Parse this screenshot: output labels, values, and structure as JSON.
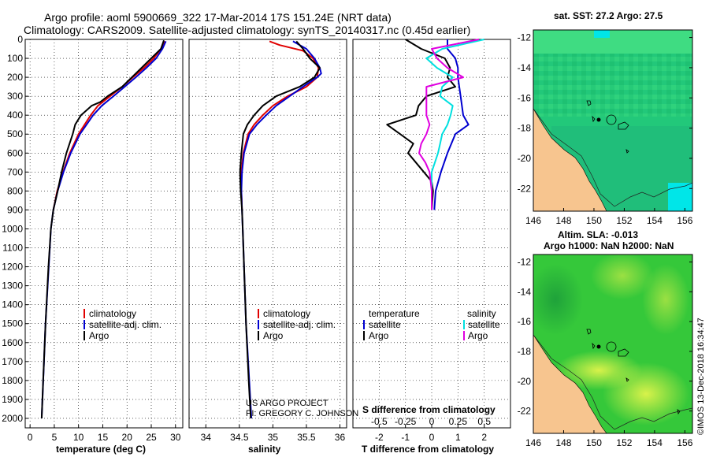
{
  "figure": {
    "title_line1": "Argo profile: aoml 5900669_322 17-Mar-2014 17S 151.24E (NRT data)",
    "title_line2": "Climatology: CARS2009. Satellite-adjusted climatology: synTS_20140317.nc (0.45d earlier)",
    "credit_line1": "US ARGO PROJECT",
    "credit_line2": "PI: GREGORY C. JOHNSON",
    "imos_stamp": "©IMOS 13-Dec-2018 16:34:47",
    "colors": {
      "climatology": "#e00000",
      "satellite": "#0000d0",
      "argo": "#000000",
      "sat_salinity": "#00e0e0",
      "argo_salinity": "#e000e0"
    }
  },
  "chart_data": [
    {
      "type": "line",
      "name": "temperature",
      "xlabel": "temperature (deg C)",
      "ylabel": "",
      "xlim": [
        -1,
        31.5
      ],
      "ylim": [
        2050,
        0
      ],
      "xticks": [
        "0",
        "5",
        "10",
        "15",
        "20",
        "25",
        "30"
      ],
      "xtick_values": [
        0,
        5,
        10,
        15,
        20,
        25,
        30
      ],
      "yticks": [
        "0",
        "100",
        "200",
        "300",
        "400",
        "500",
        "600",
        "700",
        "800",
        "900",
        "1000",
        "1100",
        "1200",
        "1300",
        "1400",
        "1500",
        "1600",
        "1700",
        "1800",
        "1900",
        "2000"
      ],
      "ytick_values": [
        0,
        100,
        200,
        300,
        400,
        500,
        600,
        700,
        800,
        900,
        1000,
        1100,
        1200,
        1300,
        1400,
        1500,
        1600,
        1700,
        1800,
        1900,
        2000
      ],
      "legend": [
        "climatology",
        "satellite-adj. clim.",
        "Argo"
      ],
      "series": [
        {
          "name": "climatology",
          "color": "#e00000",
          "depth": [
            10,
            50,
            100,
            150,
            200,
            250,
            300,
            350,
            400,
            500,
            600,
            700,
            800,
            900
          ],
          "values": [
            27.8,
            27.0,
            25.5,
            23.5,
            21.2,
            19.0,
            16.5,
            14.0,
            12.5,
            10.0,
            8.2,
            6.8,
            5.6,
            4.8
          ]
        },
        {
          "name": "satellite-adj. clim.",
          "color": "#0000d0",
          "depth": [
            10,
            50,
            100,
            150,
            200,
            250,
            300,
            350,
            400,
            500,
            600,
            700,
            800,
            900,
            1000,
            1500,
            2000
          ],
          "values": [
            28.0,
            27.3,
            26.0,
            24.0,
            21.8,
            19.5,
            17.2,
            14.8,
            13.0,
            10.3,
            8.4,
            6.9,
            5.7,
            4.8,
            4.3,
            3.2,
            2.4
          ]
        },
        {
          "name": "Argo",
          "color": "#000000",
          "depth": [
            5,
            50,
            100,
            150,
            200,
            250,
            300,
            330,
            350,
            400,
            450,
            500,
            600,
            700,
            800,
            900,
            1000,
            1200,
            1500,
            1800,
            2000
          ],
          "values": [
            27.6,
            27.0,
            25.0,
            23.0,
            21.0,
            19.0,
            16.0,
            14.5,
            12.7,
            10.5,
            9.3,
            8.8,
            7.5,
            6.5,
            5.7,
            4.8,
            4.3,
            3.8,
            3.2,
            2.7,
            2.4
          ]
        }
      ]
    },
    {
      "type": "line",
      "name": "salinity",
      "xlabel": "salinity",
      "xlim": [
        33.75,
        36.1
      ],
      "ylim": [
        2050,
        0
      ],
      "xticks": [
        "34",
        "34.5",
        "35",
        "35.5",
        "36"
      ],
      "xtick_values": [
        34,
        34.5,
        35,
        35.5,
        36
      ],
      "legend": [
        "climatology",
        "satellite-adj. clim.",
        "Argo"
      ],
      "series": [
        {
          "name": "climatology",
          "color": "#e00000",
          "depth": [
            10,
            30,
            60,
            100,
            150,
            200,
            250,
            300,
            350,
            400,
            450,
            500,
            600,
            700,
            800,
            900
          ],
          "values": [
            34.95,
            35.1,
            35.45,
            35.6,
            35.68,
            35.66,
            35.5,
            35.22,
            35.0,
            34.85,
            34.72,
            34.63,
            34.56,
            34.53,
            34.53,
            34.54
          ]
        },
        {
          "name": "satellite-adj. clim.",
          "color": "#0000d0",
          "depth": [
            10,
            50,
            100,
            150,
            180,
            200,
            250,
            300,
            350,
            400,
            450,
            500,
            600,
            700,
            800,
            900,
            1000,
            1500,
            2000
          ],
          "values": [
            35.3,
            35.5,
            35.62,
            35.7,
            35.72,
            35.66,
            35.45,
            35.25,
            35.05,
            34.9,
            34.76,
            34.65,
            34.57,
            34.54,
            34.53,
            34.54,
            34.55,
            34.6,
            34.68
          ]
        },
        {
          "name": "Argo",
          "color": "#000000",
          "depth": [
            10,
            50,
            100,
            150,
            200,
            250,
            300,
            350,
            400,
            450,
            500,
            600,
            700,
            800,
            900,
            1000,
            1200,
            1500,
            1800,
            2000
          ],
          "values": [
            35.35,
            35.45,
            35.55,
            35.7,
            35.62,
            35.4,
            35.05,
            34.85,
            34.72,
            34.62,
            34.56,
            34.53,
            34.51,
            34.52,
            34.54,
            34.55,
            34.57,
            34.6,
            34.64,
            34.67
          ]
        }
      ]
    },
    {
      "type": "line",
      "name": "difference",
      "xlabel": "T difference from climatology",
      "xlabel_top": "S difference from climatology",
      "xlim": [
        -3,
        3
      ],
      "ylim": [
        2050,
        0
      ],
      "xticks": [
        "-2",
        "-1",
        "0",
        "1",
        "2"
      ],
      "xtick_values": [
        -2,
        -1,
        0,
        1,
        2
      ],
      "s_xticks": [
        "-0.5",
        "-0.25",
        "0",
        "0.25",
        "0.5"
      ],
      "s_xtick_values": [
        -0.5,
        -0.25,
        0,
        0.25,
        0.5
      ],
      "legend_left_header": "temperature",
      "legend_right_header": "salinity",
      "legend_left": [
        "satellite",
        "Argo"
      ],
      "legend_right": [
        "satellite",
        "Argo"
      ],
      "series": [
        {
          "name": "T satellite",
          "color": "#0000d0",
          "depth": [
            0,
            50,
            100,
            150,
            200,
            300,
            400,
            450,
            500,
            600,
            700,
            800,
            900
          ],
          "values": [
            0.6,
            0.6,
            0.9,
            1.0,
            1.0,
            1.1,
            1.2,
            1.4,
            0.9,
            0.6,
            0.35,
            0.15,
            0.1
          ]
        },
        {
          "name": "T Argo",
          "color": "#000000",
          "depth": [
            0,
            50,
            100,
            150,
            200,
            250,
            300,
            350,
            400,
            450,
            500,
            550,
            600,
            650,
            700,
            750,
            800,
            900
          ],
          "values": [
            -1.0,
            -0.4,
            0.5,
            0.7,
            0.6,
            0.9,
            -0.2,
            -0.5,
            -0.6,
            -1.7,
            -1.2,
            -0.7,
            -0.9,
            -0.6,
            -0.3,
            0.0,
            0.05,
            0.0
          ]
        },
        {
          "name": "S satellite",
          "color": "#00e0e0",
          "depth": [
            0,
            50,
            100,
            150,
            200,
            250,
            300,
            350,
            400,
            450,
            500,
            550,
            600,
            650,
            700,
            800,
            900
          ],
          "values": [
            0.5,
            0.1,
            -0.05,
            0.05,
            0.2,
            0.1,
            0.08,
            0.2,
            0.18,
            0.15,
            0.1,
            0.08,
            0.06,
            0.03,
            0.0,
            0.0,
            0.0
          ]
        },
        {
          "name": "S Argo",
          "color": "#e000e0",
          "depth": [
            0,
            50,
            100,
            150,
            200,
            250,
            300,
            350,
            400,
            450,
            500,
            550,
            600,
            650,
            700,
            800,
            900
          ],
          "values": [
            0.45,
            0.0,
            0.05,
            0.15,
            0.3,
            -0.05,
            -0.05,
            -0.05,
            -0.05,
            -0.02,
            -0.05,
            -0.1,
            -0.12,
            -0.06,
            -0.02,
            0.0,
            0.0
          ]
        }
      ]
    },
    {
      "type": "heatmap",
      "name": "sst-map",
      "title": "sat. SST: 27.2 Argo: 27.5",
      "xlim": [
        146,
        156.5
      ],
      "ylim": [
        -23.5,
        -11.5
      ],
      "xticks": [
        "146",
        "148",
        "150",
        "152",
        "154",
        "156"
      ],
      "xtick_values": [
        146,
        148,
        150,
        152,
        154,
        156
      ],
      "yticks": [
        "-12",
        "-14",
        "-16",
        "-18",
        "-20",
        "-22"
      ],
      "ytick_values": [
        -12,
        -14,
        -16,
        -18,
        -20,
        -22
      ],
      "colors": {
        "ocean": "#22c87a",
        "land": "#f7c58f",
        "warm": "#34e07e",
        "cool": "#00e6e8"
      }
    },
    {
      "type": "heatmap",
      "name": "sla-map",
      "title_line1": "Altim. SLA: -0.013",
      "title_line2": "Argo h1000: NaN h2000: NaN",
      "xlim": [
        146,
        156.5
      ],
      "ylim": [
        -23.5,
        -11.5
      ],
      "xticks": [
        "146",
        "148",
        "150",
        "152",
        "154",
        "156"
      ],
      "xtick_values": [
        146,
        148,
        150,
        152,
        154,
        156
      ],
      "yticks": [
        "-12",
        "-14",
        "-16",
        "-18",
        "-20",
        "-22"
      ],
      "ytick_values": [
        -12,
        -14,
        -16,
        -18,
        -20,
        -22
      ],
      "colors": {
        "base": "#35c83a",
        "high": "#c8f040",
        "land": "#f7c58f"
      }
    }
  ]
}
